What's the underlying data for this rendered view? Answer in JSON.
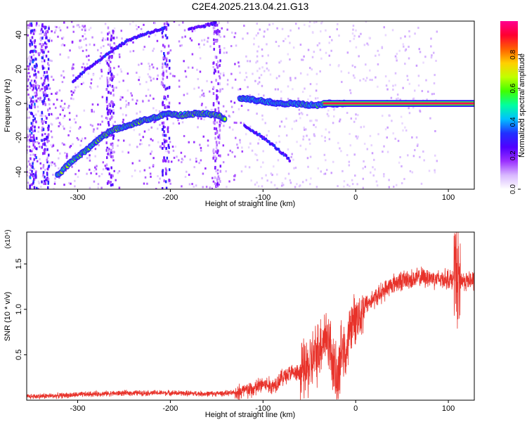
{
  "title": "C2E4.2025.213.04.21.G13",
  "colors": {
    "snr_line": "#e8322a",
    "axis": "#000000",
    "background": "#ffffff",
    "signal_band": "#e8204a"
  },
  "chart_data": [
    {
      "type": "heatmap",
      "title": "C2E4.2025.213.04.21.G13",
      "xlabel": "Height of straight line (km)",
      "ylabel": "Frequency (Hz)",
      "xlim": [
        -355,
        128
      ],
      "ylim": [
        -50,
        48
      ],
      "xticks": [
        -300,
        -200,
        -100,
        0,
        100
      ],
      "yticks": [
        -40,
        -20,
        0,
        20,
        40
      ],
      "colorbar": {
        "label": "Normalized spectral amplitude",
        "range": [
          0,
          1
        ],
        "ticks": [
          "0.0",
          "0.2",
          "0.4",
          "0.6",
          "0.8"
        ],
        "tick_values": [
          0,
          0.2,
          0.4,
          0.6,
          0.8
        ],
        "colormap": [
          "#ffffff",
          "#d8b8ff",
          "#9b30ff",
          "#5000ff",
          "#2030ff",
          "#00c0ff",
          "#00ffa0",
          "#40ff00",
          "#c0ff00",
          "#ffd000",
          "#ff6000",
          "#ff0030",
          "#ff0090"
        ]
      },
      "features": [
        {
          "name": "main_track",
          "amplitude": 0.55,
          "points": [
            [
              -322,
              -42
            ],
            [
              -305,
              -33
            ],
            [
              -290,
              -27
            ],
            [
              -275,
              -20
            ],
            [
              -260,
              -15
            ],
            [
              -245,
              -13
            ],
            [
              -230,
              -10
            ],
            [
              -215,
              -8
            ],
            [
              -205,
              -6
            ],
            [
              -190,
              -7
            ],
            [
              -175,
              -6
            ],
            [
              -160,
              -6
            ],
            [
              -150,
              -7
            ],
            [
              -140,
              -9
            ]
          ]
        },
        {
          "name": "residual_track",
          "amplitude": 0.5,
          "points": [
            [
              -125,
              3
            ],
            [
              -110,
              2
            ],
            [
              -95,
              1
            ],
            [
              -80,
              0
            ],
            [
              -65,
              0
            ],
            [
              -50,
              -1
            ],
            [
              -40,
              -1
            ],
            [
              -30,
              0
            ],
            [
              -20,
              0
            ],
            [
              -10,
              0
            ]
          ]
        },
        {
          "name": "line_band",
          "amplitude": 0.95,
          "x": [
            -35,
            128
          ],
          "y": 0
        },
        {
          "name": "upper_arc",
          "amplitude": 0.3,
          "points": [
            [
              -305,
              13
            ],
            [
              -285,
              22
            ],
            [
              -265,
              30
            ],
            [
              -245,
              37
            ],
            [
              -225,
              41
            ],
            [
              -205,
              44
            ]
          ]
        },
        {
          "name": "upper_arc_2",
          "amplitude": 0.25,
          "points": [
            [
              -180,
              43
            ],
            [
              -165,
              45
            ],
            [
              -150,
              47
            ]
          ]
        },
        {
          "name": "lower_arc",
          "amplitude": 0.3,
          "points": [
            [
              -120,
              -13
            ],
            [
              -105,
              -18
            ],
            [
              -90,
              -24
            ],
            [
              -75,
              -31
            ],
            [
              -70,
              -34
            ]
          ]
        }
      ]
    },
    {
      "type": "line",
      "xlabel": "Height of straight line (km)",
      "ylabel": "SNR (10 * v/v)",
      "y_multiplier": "(x10⁴)",
      "xlim": [
        -355,
        128
      ],
      "ylim": [
        0,
        1.85
      ],
      "xticks": [
        -300,
        -200,
        -100,
        0,
        100
      ],
      "yticks": [
        0.5,
        1.0,
        1.5
      ],
      "ytick_labels": [
        "0.5",
        "1.0",
        "1.5"
      ],
      "series": [
        {
          "values_x": [
            -355,
            -320,
            -280,
            -240,
            -200,
            -160,
            -130,
            -110,
            -100,
            -90,
            -80,
            -70,
            -60,
            -50,
            -40,
            -35,
            -30,
            -25,
            -20,
            -15,
            -10,
            -5,
            0,
            5,
            10,
            20,
            30,
            40,
            50,
            60,
            70,
            80,
            90,
            100,
            105,
            108,
            110,
            112,
            115,
            120,
            128
          ],
          "values_y": [
            0.04,
            0.05,
            0.07,
            0.08,
            0.08,
            0.07,
            0.08,
            0.12,
            0.18,
            0.15,
            0.25,
            0.3,
            0.28,
            0.38,
            0.55,
            0.7,
            0.7,
            0.45,
            0.15,
            0.55,
            0.5,
            0.85,
            0.9,
            0.95,
            1.05,
            1.12,
            1.2,
            1.28,
            1.32,
            1.33,
            1.35,
            1.35,
            1.33,
            1.34,
            1.32,
            1.45,
            1.2,
            1.32,
            1.32,
            1.31,
            1.32
          ]
        }
      ]
    }
  ]
}
